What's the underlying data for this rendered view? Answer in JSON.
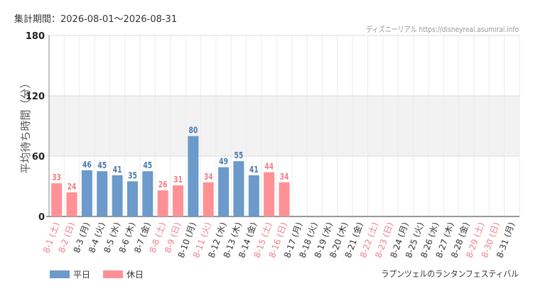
{
  "chart_data": {
    "type": "bar",
    "period_label": "集計期間：2026-08-01〜2026-08-31",
    "site_label": "ディズニーリアル https://disneyreal.asumirai.info",
    "attraction_label": "ラプンツェルのランタンフェスティバル",
    "ylabel": "平均待ち時間（分）",
    "ylim": [
      0,
      180
    ],
    "yticks": [
      "0",
      "60",
      "120",
      "180"
    ],
    "categories": [
      "8-1 (土)",
      "8-2 (日)",
      "8-3 (月)",
      "8-4 (火)",
      "8-5 (水)",
      "8-6 (木)",
      "8-7 (金)",
      "8-8 (土)",
      "8-9 (日)",
      "8-10 (月)",
      "8-11 (火)",
      "8-12 (水)",
      "8-13 (木)",
      "8-14 (金)",
      "8-15 (土)",
      "8-16 (日)",
      "8-17 (月)",
      "8-18 (火)",
      "8-19 (水)",
      "8-20 (木)",
      "8-21 (金)",
      "8-22 (土)",
      "8-23 (日)",
      "8-24 (月)",
      "8-25 (火)",
      "8-26 (水)",
      "8-27 (木)",
      "8-28 (金)",
      "8-29 (土)",
      "8-30 (日)",
      "8-31 (月)"
    ],
    "day_types": [
      "holiday",
      "holiday",
      "weekday",
      "weekday",
      "weekday",
      "weekday",
      "weekday",
      "holiday",
      "holiday",
      "weekday",
      "holiday",
      "weekday",
      "weekday",
      "weekday",
      "holiday",
      "holiday",
      "weekday",
      "weekday",
      "weekday",
      "weekday",
      "weekday",
      "holiday",
      "holiday",
      "weekday",
      "weekday",
      "weekday",
      "weekday",
      "weekday",
      "holiday",
      "holiday",
      "weekday"
    ],
    "values": [
      33,
      24,
      46,
      45,
      41,
      35,
      45,
      26,
      31,
      80,
      34,
      49,
      55,
      41,
      44,
      34,
      null,
      null,
      null,
      null,
      null,
      null,
      null,
      null,
      null,
      null,
      null,
      null,
      null,
      null,
      null
    ],
    "legend": [
      {
        "key": "weekday",
        "label": "平日",
        "color": "#6b9acb"
      },
      {
        "key": "holiday",
        "label": "休日",
        "color": "#ff9196"
      }
    ],
    "holiday_label_color": "#f07f86",
    "weekday_label_color": "#333333",
    "weekday_value_color": "#4a79b0",
    "holiday_value_color": "#f07f86",
    "band_range": [
      60,
      120
    ],
    "grid": true
  }
}
